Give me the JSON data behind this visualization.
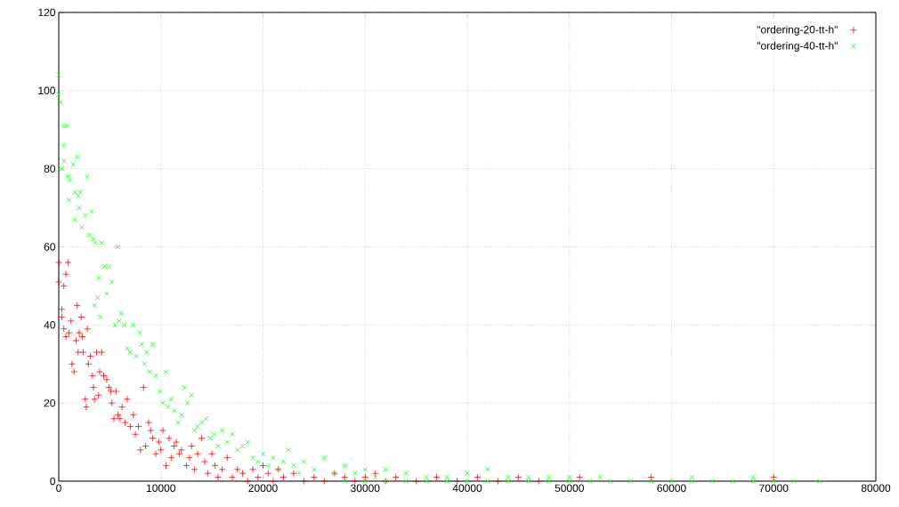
{
  "chart_data": {
    "type": "scatter",
    "xlim": [
      0,
      80000
    ],
    "ylim": [
      0,
      120
    ],
    "xticks": [
      0,
      10000,
      20000,
      30000,
      40000,
      50000,
      60000,
      70000,
      80000
    ],
    "yticks": [
      0,
      20,
      40,
      60,
      80,
      100,
      120
    ],
    "grid": true,
    "legend": "top right",
    "series": [
      {
        "name": "\"ordering-20-tt-h\"",
        "color": "#ff0000",
        "marker": "plus",
        "x": [
          0,
          0,
          300,
          300,
          500,
          700,
          900,
          1000,
          500,
          700,
          1200,
          1300,
          1500,
          1700,
          1800,
          1900,
          2000,
          2200,
          2300,
          2400,
          2600,
          2700,
          2800,
          2900,
          3100,
          3300,
          3400,
          3500,
          3700,
          3900,
          4000,
          4200,
          4400,
          4700,
          4900,
          5100,
          5200,
          5400,
          5600,
          5800,
          6000,
          6200,
          6500,
          6700,
          7000,
          7300,
          7500,
          7800,
          8000,
          8300,
          8500,
          8800,
          9000,
          9200,
          9500,
          9800,
          10000,
          10200,
          10500,
          10800,
          11000,
          11300,
          11500,
          11800,
          12000,
          12500,
          12800,
          13000,
          13300,
          13600,
          14000,
          14300,
          14600,
          15000,
          15300,
          15600,
          16000,
          16500,
          17000,
          17500,
          18000,
          18500,
          19000,
          19500,
          20000,
          20500,
          21000,
          21500,
          22000,
          23000,
          24000,
          25000,
          26000,
          27000,
          28000,
          29000,
          30000,
          31000,
          32000,
          33000,
          35000,
          37000,
          39000,
          41000,
          43000,
          45000,
          47000,
          51000,
          58000,
          70000
        ],
        "values": [
          56,
          51,
          44,
          42,
          50,
          53,
          56,
          38,
          39,
          37,
          41,
          30,
          28,
          36,
          45,
          33,
          38,
          42,
          37,
          33,
          21,
          19,
          39,
          30,
          32,
          27,
          24,
          21,
          33,
          22,
          28,
          33,
          27,
          26,
          24,
          23,
          20,
          16,
          23,
          17,
          16,
          19,
          15,
          21,
          14,
          17,
          12,
          14,
          8,
          24,
          9,
          15,
          13,
          11,
          7,
          10,
          8,
          13,
          4,
          11,
          6,
          9,
          10,
          7,
          8,
          4,
          6,
          9,
          3,
          7,
          11,
          5,
          2,
          7,
          4,
          1,
          3,
          6,
          1,
          3,
          2,
          0,
          3,
          1,
          4,
          2,
          0,
          3,
          1,
          2,
          0,
          1,
          0,
          2,
          1,
          0,
          1,
          2,
          0,
          1,
          0,
          1,
          0,
          1,
          0,
          1,
          0,
          1,
          1,
          1
        ]
      },
      {
        "name": "\"ordering-40-tt-h\"",
        "color": "#00ff00",
        "marker": "cross",
        "x": [
          0,
          0,
          200,
          500,
          800,
          500,
          500,
          300,
          900,
          1100,
          1000,
          1400,
          1800,
          1600,
          1900,
          2100,
          2300,
          2600,
          2800,
          3000,
          3200,
          3400,
          1600,
          2000,
          3600,
          3900,
          4200,
          3500,
          3800,
          4100,
          4500,
          4900,
          5200,
          4700,
          5500,
          5800,
          5900,
          6100,
          6400,
          6700,
          7000,
          7300,
          7600,
          7900,
          8100,
          8400,
          8600,
          8900,
          9200,
          9500,
          9900,
          10200,
          10500,
          10700,
          11000,
          11300,
          11700,
          12000,
          12300,
          12600,
          13000,
          13300,
          13600,
          14000,
          14400,
          14800,
          15200,
          15600,
          16000,
          16500,
          17000,
          17500,
          18000,
          18500,
          19000,
          19500,
          20000,
          20500,
          21000,
          21500,
          22000,
          22500,
          23000,
          23500,
          24000,
          25000,
          26000,
          27000,
          28000,
          29000,
          30000,
          31000,
          32000,
          34000,
          36000,
          38000,
          40000,
          42000,
          44000,
          46000,
          48000,
          50000,
          53000,
          62000,
          68000,
          28000,
          30000,
          32000,
          34000,
          36000,
          38000,
          40000,
          42000,
          44000,
          46000,
          48000,
          50000,
          52000,
          54000,
          56000,
          58000,
          60000,
          62000,
          64000,
          66000,
          68000,
          70000,
          72000,
          74500
        ],
        "values": [
          104,
          99,
          97,
          91,
          91,
          86,
          82,
          80,
          78,
          77,
          72,
          81,
          83,
          74,
          73,
          74,
          65,
          68,
          78,
          63,
          69,
          62,
          67,
          70,
          61,
          52,
          61,
          45,
          47,
          42,
          55,
          55,
          51,
          48,
          40,
          60,
          41,
          43,
          40,
          34,
          33,
          40,
          32,
          38,
          35,
          30,
          33,
          28,
          35,
          27,
          23,
          20,
          28,
          19,
          21,
          18,
          15,
          17,
          24,
          20,
          22,
          13,
          14,
          15,
          16,
          11,
          12,
          9,
          13,
          10,
          12,
          8,
          9,
          10,
          6,
          5,
          7,
          4,
          6,
          3,
          5,
          8,
          4,
          2,
          5,
          3,
          6,
          2,
          4,
          2,
          3,
          1,
          3,
          2,
          1,
          1,
          2,
          3,
          1,
          1,
          1,
          1,
          1,
          1,
          1,
          0,
          0,
          0,
          0,
          0,
          0,
          0,
          0,
          0,
          0,
          0,
          0,
          0,
          0,
          0,
          0,
          0,
          0,
          0,
          0,
          0,
          0,
          0,
          0
        ]
      }
    ]
  }
}
